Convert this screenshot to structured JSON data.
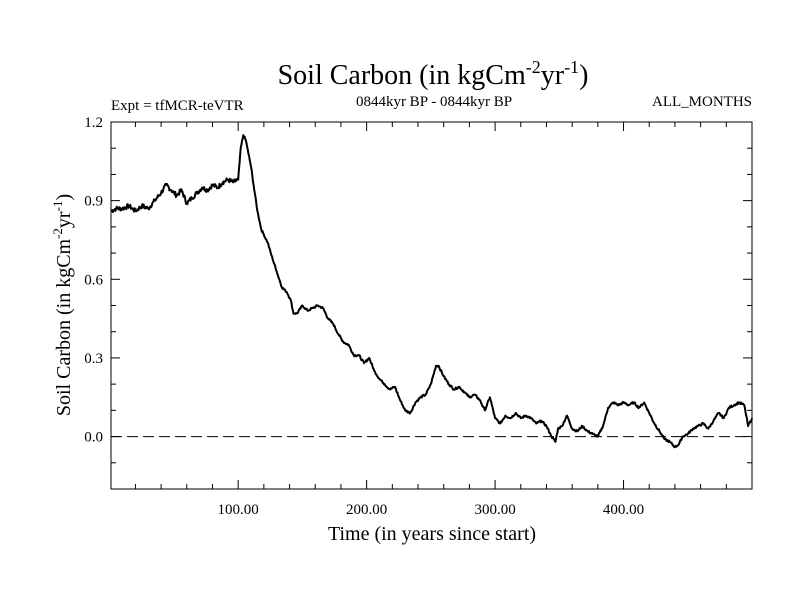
{
  "chart_data": {
    "type": "line",
    "title": "Soil Carbon (in kgCm",
    "title_sup1": "-2",
    "title_mid": "yr",
    "title_sup2": "-1",
    "title_end": ")",
    "subtitle_left": "Expt = tfMCR-teVTR",
    "subtitle_center": "0844kyr BP - 0844kyr BP",
    "subtitle_right": "ALL_MONTHS",
    "xlabel": "Time (in years since start)",
    "ylabel": "Soil Carbon (in kgCm",
    "ylabel_sup1": "-2",
    "ylabel_mid": "yr",
    "ylabel_sup2": "-1",
    "ylabel_end": ")",
    "xlim": [
      1,
      500
    ],
    "ylim": [
      -0.2,
      1.2
    ],
    "xticks": [
      100,
      200,
      300,
      400
    ],
    "xtick_labels": [
      "100.00",
      "200.00",
      "300.00",
      "400.00"
    ],
    "yticks": [
      0.0,
      0.3,
      0.6,
      0.9,
      1.2
    ],
    "ytick_labels": [
      "0.0",
      "0.3",
      "0.6",
      "0.9",
      "1.2"
    ],
    "reference_line": {
      "y": 0.0,
      "style": "dashed"
    },
    "series": [
      {
        "name": "Soil Carbon",
        "x": [
          1,
          5,
          10,
          15,
          20,
          25,
          30,
          35,
          40,
          44,
          48,
          52,
          56,
          60,
          64,
          68,
          72,
          76,
          80,
          84,
          88,
          92,
          96,
          100,
          102,
          104,
          106,
          108,
          110,
          112,
          115,
          118,
          120,
          123,
          126,
          130,
          134,
          138,
          141,
          143,
          146,
          150,
          154,
          158,
          162,
          166,
          170,
          174,
          178,
          182,
          186,
          190,
          194,
          198,
          202,
          206,
          210,
          214,
          218,
          222,
          226,
          230,
          234,
          238,
          242,
          246,
          250,
          254,
          256,
          260,
          264,
          268,
          272,
          276,
          280,
          284,
          288,
          292,
          296,
          300,
          304,
          308,
          312,
          316,
          320,
          324,
          328,
          332,
          336,
          340,
          344,
          347,
          349,
          352,
          356,
          360,
          364,
          368,
          372,
          376,
          380,
          384,
          388,
          392,
          396,
          400,
          404,
          408,
          412,
          416,
          420,
          424,
          428,
          432,
          436,
          440,
          443,
          446,
          450,
          454,
          458,
          462,
          466,
          470,
          474,
          478,
          482,
          486,
          490,
          494,
          497,
          500
        ],
        "y": [
          0.86,
          0.87,
          0.87,
          0.88,
          0.86,
          0.88,
          0.87,
          0.9,
          0.93,
          0.96,
          0.94,
          0.92,
          0.94,
          0.89,
          0.91,
          0.93,
          0.95,
          0.94,
          0.96,
          0.95,
          0.97,
          0.98,
          0.97,
          0.98,
          1.1,
          1.15,
          1.13,
          1.08,
          1.03,
          0.96,
          0.86,
          0.79,
          0.77,
          0.74,
          0.69,
          0.63,
          0.57,
          0.55,
          0.52,
          0.47,
          0.47,
          0.5,
          0.48,
          0.49,
          0.5,
          0.49,
          0.45,
          0.43,
          0.39,
          0.36,
          0.35,
          0.31,
          0.31,
          0.28,
          0.3,
          0.25,
          0.22,
          0.2,
          0.18,
          0.19,
          0.14,
          0.1,
          0.09,
          0.13,
          0.15,
          0.16,
          0.2,
          0.27,
          0.27,
          0.23,
          0.2,
          0.18,
          0.19,
          0.17,
          0.15,
          0.16,
          0.14,
          0.1,
          0.15,
          0.07,
          0.05,
          0.08,
          0.07,
          0.09,
          0.07,
          0.08,
          0.07,
          0.05,
          0.06,
          0.04,
          0.0,
          -0.02,
          0.03,
          0.04,
          0.08,
          0.03,
          0.02,
          0.04,
          0.02,
          0.01,
          0.0,
          0.04,
          0.11,
          0.13,
          0.12,
          0.13,
          0.12,
          0.13,
          0.11,
          0.13,
          0.09,
          0.05,
          0.02,
          -0.01,
          -0.02,
          -0.04,
          -0.03,
          0.0,
          0.01,
          0.03,
          0.04,
          0.05,
          0.03,
          0.06,
          0.09,
          0.07,
          0.11,
          0.12,
          0.13,
          0.12,
          0.04,
          0.07
        ]
      }
    ]
  }
}
